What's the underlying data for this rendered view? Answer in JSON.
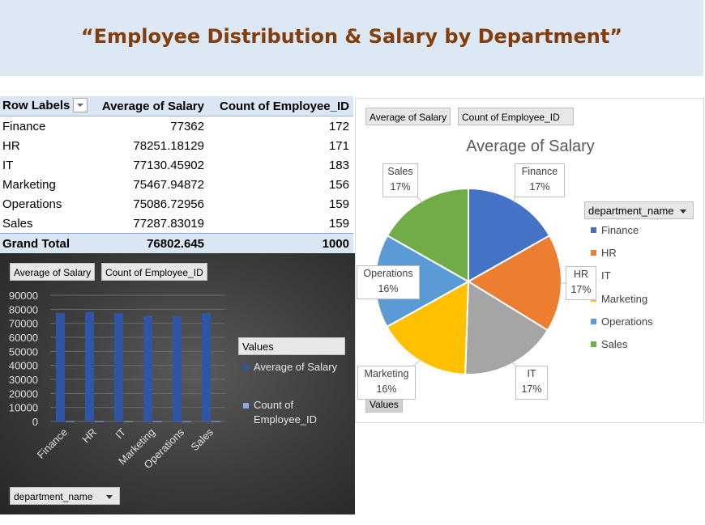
{
  "title": "“Employee Distribution & Salary by Department”",
  "pivot": {
    "headers": {
      "row_labels": "Row Labels",
      "avg": "Average of Salary",
      "count": "Count of Employee_ID"
    },
    "rows": [
      {
        "label": "Finance",
        "avg": "77362",
        "count": "172"
      },
      {
        "label": "HR",
        "avg": "78251.18129",
        "count": "171"
      },
      {
        "label": "IT",
        "avg": "77130.45902",
        "count": "183"
      },
      {
        "label": "Marketing",
        "avg": "75467.94872",
        "count": "156"
      },
      {
        "label": "Operations",
        "avg": "75086.72956",
        "count": "159"
      },
      {
        "label": "Sales",
        "avg": "77287.83019",
        "count": "159"
      }
    ],
    "total": {
      "label": "Grand Total",
      "avg": "76802.645",
      "count": "1000"
    }
  },
  "bar_panel": {
    "field_buttons": [
      "Average of Salary",
      "Count of Employee_ID"
    ],
    "legend_title": "Values",
    "legend_items": [
      "Average of Salary",
      "Count of Employee_ID"
    ],
    "axis_button": "department_name"
  },
  "pie_panel": {
    "field_buttons": [
      "Average of Salary",
      "Count of Employee_ID"
    ],
    "legend_title": "department_name",
    "values_button": "Values"
  },
  "chart_data": [
    {
      "type": "bar",
      "categories": [
        "Finance",
        "HR",
        "IT",
        "Marketing",
        "Operations",
        "Sales"
      ],
      "series": [
        {
          "name": "Average of Salary",
          "values": [
            77362,
            78251.18129,
            77130.45902,
            75467.94872,
            75086.72956,
            77287.83019
          ],
          "color": "#2f55a4"
        },
        {
          "name": "Count of Employee_ID",
          "values": [
            172,
            171,
            183,
            156,
            159,
            159
          ],
          "color": "#8fa8de"
        }
      ],
      "ylim": [
        0,
        90000
      ],
      "yticks": [
        "90000",
        "80000",
        "70000",
        "60000",
        "50000",
        "40000",
        "30000",
        "20000",
        "10000",
        "0"
      ],
      "legend": "right",
      "grid": true
    },
    {
      "type": "pie",
      "title": "Average of Salary",
      "categories": [
        "Finance",
        "HR",
        "IT",
        "Marketing",
        "Operations",
        "Sales"
      ],
      "values": [
        77362,
        78251.18129,
        77130.45902,
        75467.94872,
        75086.72956,
        77287.83019
      ],
      "labels": [
        "17%",
        "17%",
        "17%",
        "16%",
        "16%",
        "17%"
      ],
      "colors": [
        "#4472c4",
        "#ed7d31",
        "#a5a5a5",
        "#ffc000",
        "#5b9bd5",
        "#70ad47"
      ],
      "legend": "right"
    }
  ]
}
